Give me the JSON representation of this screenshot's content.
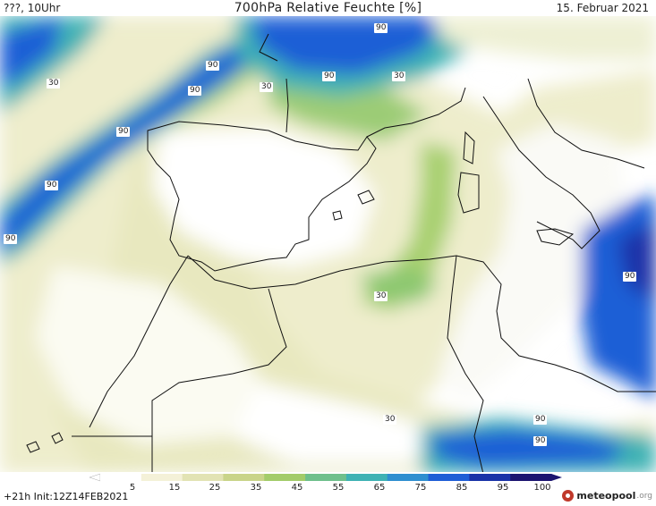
{
  "header": {
    "left": "???, 10Uhr",
    "title": "700hPa Relative Feuchte [%]",
    "date": "15. Februar 2021"
  },
  "map": {
    "contour_labels": [
      "90",
      "90",
      "90",
      "90",
      "30",
      "90",
      "30",
      "30",
      "90",
      "90",
      "90",
      "30",
      "90",
      "30",
      "90"
    ]
  },
  "legend": {
    "ticks": [
      "5",
      "15",
      "25",
      "35",
      "45",
      "55",
      "65",
      "75",
      "85",
      "95",
      "100"
    ],
    "colors": [
      "#ffffff",
      "#f4f1d8",
      "#e2e3b4",
      "#c9d48a",
      "#a3cc6a",
      "#6fc08c",
      "#3fb2b4",
      "#2f8fd0",
      "#1f5ed6",
      "#1a33a8",
      "#1c1470"
    ]
  },
  "footer": {
    "run": "+21h Init:12Z14FEB2021",
    "brand": "meteopool",
    "brand_suffix": ".org"
  }
}
